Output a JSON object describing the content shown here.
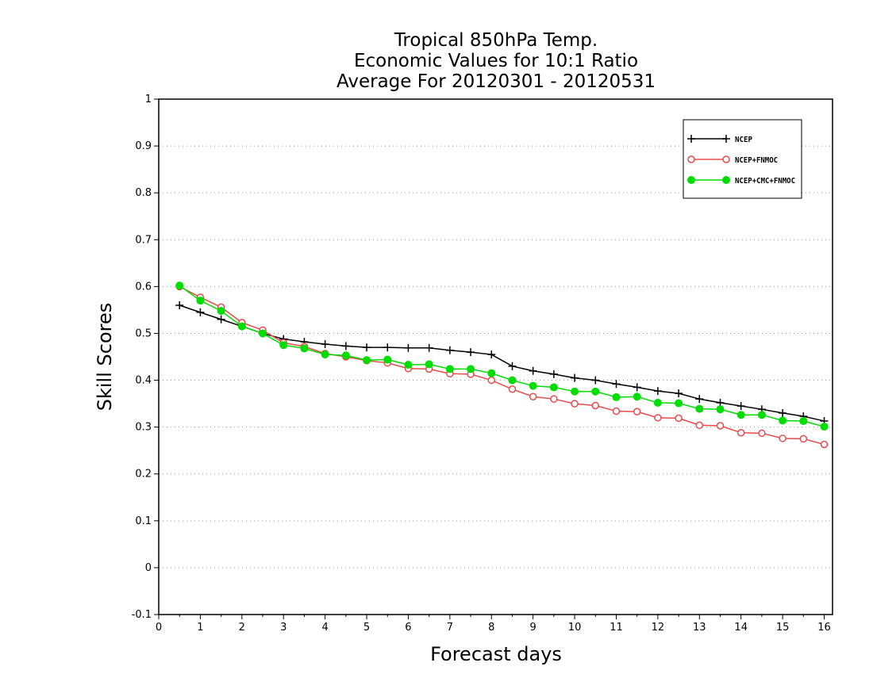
{
  "chart_data": {
    "type": "line",
    "title": [
      "Tropical 850hPa Temp.",
      "Economic Values for 10:1 Ratio",
      "Average For 20120301 - 20120531"
    ],
    "xlabel": "Forecast days",
    "ylabel": "Skill Scores",
    "xlim": [
      0,
      16.2
    ],
    "ylim": [
      -0.1,
      1
    ],
    "xticks": [
      0,
      1,
      2,
      3,
      4,
      5,
      6,
      7,
      8,
      9,
      10,
      11,
      12,
      13,
      14,
      15,
      16
    ],
    "xtick_labels": [
      "0",
      "1",
      "2",
      "3",
      "4",
      "5",
      "6",
      "7",
      "8",
      "9",
      "10",
      "11",
      "12",
      "13",
      "14",
      "15",
      "16"
    ],
    "yticks": [
      -0.1,
      0,
      0.1,
      0.2,
      0.3,
      0.4,
      0.5,
      0.6,
      0.7,
      0.8,
      0.9,
      1
    ],
    "ytick_labels": [
      "-0.1",
      "0",
      "0.1",
      "0.2",
      "0.3",
      "0.4",
      "0.5",
      "0.6",
      "0.7",
      "0.8",
      "0.9",
      "1"
    ],
    "grid": "horizontal dotted",
    "legend_position": "top-right",
    "x": [
      0.5,
      1,
      1.5,
      2,
      2.5,
      3,
      3.5,
      4,
      4.5,
      5,
      5.5,
      6,
      6.5,
      7,
      7.5,
      8,
      8.5,
      9,
      9.5,
      10,
      10.5,
      11,
      11.5,
      12,
      12.5,
      13,
      13.5,
      14,
      14.5,
      15,
      15.5,
      16
    ],
    "series": [
      {
        "name": "NCEP",
        "color": "#000000",
        "marker": "plus",
        "values": [
          0.56,
          0.545,
          0.53,
          0.515,
          0.5,
          0.488,
          0.482,
          0.477,
          0.473,
          0.47,
          0.47,
          0.469,
          0.469,
          0.464,
          0.46,
          0.455,
          0.43,
          0.42,
          0.413,
          0.405,
          0.4,
          0.392,
          0.385,
          0.377,
          0.372,
          0.36,
          0.352,
          0.345,
          0.338,
          0.33,
          0.323,
          0.313
        ]
      },
      {
        "name": "NCEP+FNMOC",
        "color": "#e84a4a",
        "marker": "open-circle",
        "values": [
          0.6,
          0.577,
          0.556,
          0.523,
          0.507,
          0.48,
          0.472,
          0.457,
          0.45,
          0.442,
          0.437,
          0.425,
          0.424,
          0.414,
          0.413,
          0.4,
          0.381,
          0.365,
          0.36,
          0.35,
          0.346,
          0.334,
          0.333,
          0.32,
          0.319,
          0.304,
          0.303,
          0.288,
          0.287,
          0.276,
          0.275,
          0.263
        ]
      },
      {
        "name": "NCEP+CMC+FNMOC",
        "color": "#00dd00",
        "marker": "filled-circle",
        "values": [
          0.602,
          0.57,
          0.548,
          0.515,
          0.5,
          0.475,
          0.468,
          0.455,
          0.453,
          0.443,
          0.444,
          0.433,
          0.434,
          0.424,
          0.424,
          0.415,
          0.4,
          0.388,
          0.385,
          0.376,
          0.376,
          0.364,
          0.365,
          0.352,
          0.351,
          0.339,
          0.338,
          0.326,
          0.326,
          0.314,
          0.313,
          0.301
        ]
      }
    ]
  }
}
